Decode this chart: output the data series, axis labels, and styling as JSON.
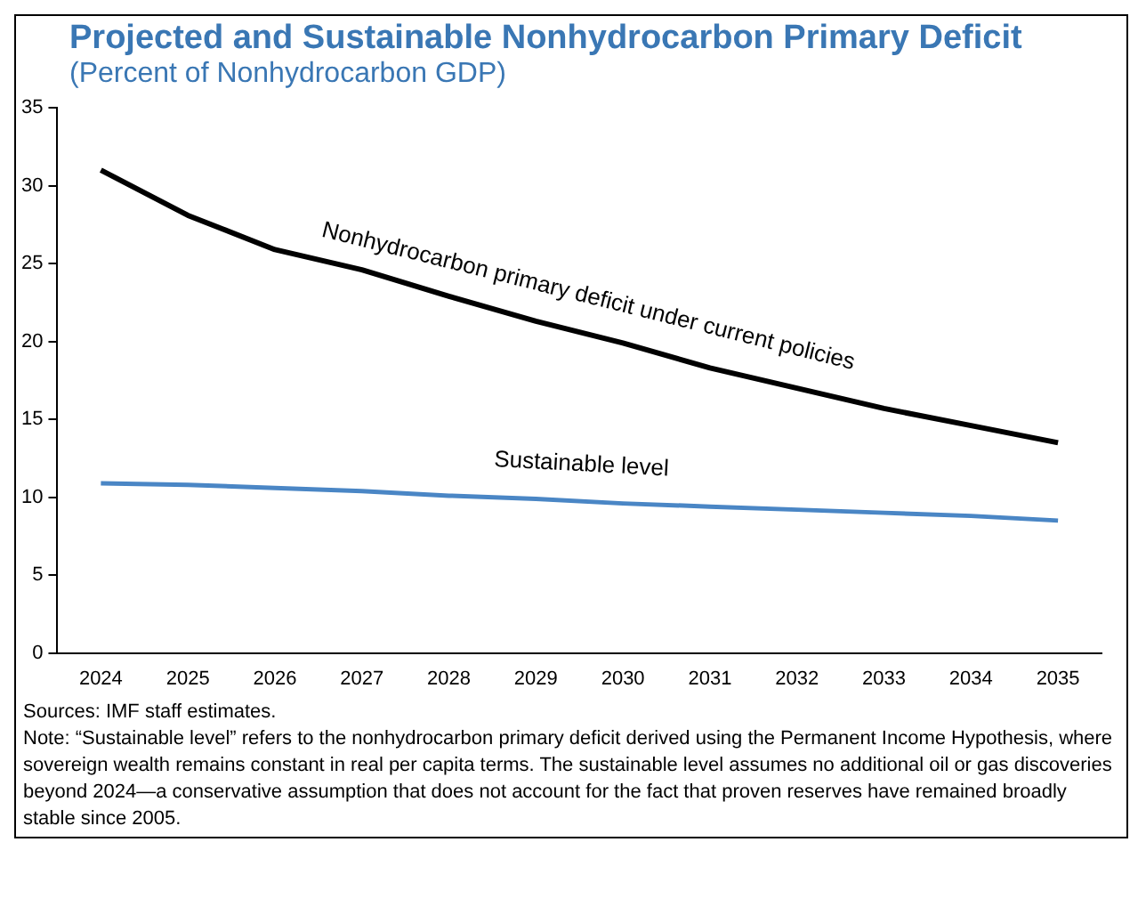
{
  "chart_data": {
    "type": "line",
    "title": "Projected and Sustainable Nonhydrocarbon Primary Deficit",
    "subtitle": "(Percent of Nonhydrocarbon GDP)",
    "categories": [
      "2024",
      "2025",
      "2026",
      "2027",
      "2028",
      "2029",
      "2030",
      "2031",
      "2032",
      "2033",
      "2034",
      "2035"
    ],
    "series": [
      {
        "name": "Nonhydrocarbon primary deficit under current policies",
        "color": "#000000",
        "values": [
          31.0,
          28.1,
          25.9,
          24.6,
          22.9,
          21.3,
          19.9,
          18.3,
          17.0,
          15.7,
          14.6,
          13.5
        ]
      },
      {
        "name": "Sustainable level",
        "color": "#4a86c5",
        "values": [
          10.9,
          10.8,
          10.6,
          10.4,
          10.1,
          9.9,
          9.6,
          9.4,
          9.2,
          9.0,
          8.8,
          8.5
        ]
      }
    ],
    "ylim": [
      0,
      35
    ],
    "yticks": [
      0,
      5,
      10,
      15,
      20,
      25,
      30,
      35
    ],
    "grid": false,
    "legend": false,
    "marker": "none",
    "line_style": "solid",
    "annotations": [
      "Sources: IMF staff estimates.",
      "Note: “Sustainable level” refers to the nonhydrocarbon primary deficit derived using the Permanent Income Hypothesis, where sovereign wealth remains constant in real per capita terms. The sustainable level assumes no additional oil or gas discoveries beyond 2024—a conservative assumption that does not account for the fact that proven reserves have remained broadly stable since 2005."
    ]
  }
}
